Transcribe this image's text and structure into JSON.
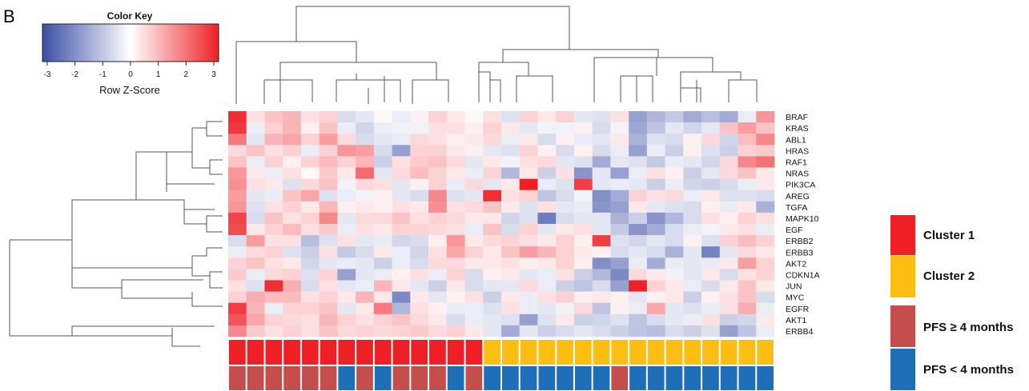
{
  "panel_label": "B",
  "color_key": {
    "title": "Color Key",
    "label": "Row Z-Score",
    "ticks": [
      -3,
      -2,
      -1,
      0,
      1,
      2,
      3
    ],
    "low_color": "#3b4ea6",
    "mid_color": "#ffffff",
    "high_color": "#ee2026"
  },
  "legend": [
    {
      "label": "Cluster 1",
      "color": "#ee2026"
    },
    {
      "label": "Cluster 2",
      "color": "#fdbe14"
    },
    {
      "label": "PFS ≥ 4 months",
      "color": "#c44e4c"
    },
    {
      "label": "PFS < 4 months",
      "color": "#1f6eb8"
    }
  ],
  "chart_data": {
    "type": "heatmap",
    "rows": [
      "BRAF",
      "KRAS",
      "ABL1",
      "HRAS",
      "RAF1",
      "NRAS",
      "PIK3CA",
      "AREG",
      "TGFA",
      "MAPK10",
      "EGF",
      "ERBB2",
      "ERBB3",
      "AKT2",
      "CDKN1A",
      "JUN",
      "MYC",
      "EGFR",
      "AKT1",
      "ERBB4"
    ],
    "n_columns": 30,
    "values": [
      [
        2.8,
        0.4,
        0.8,
        1.0,
        0.4,
        0.6,
        -0.6,
        -0.4,
        0.1,
        -0.3,
        0.2,
        0.6,
        0.3,
        0.1,
        0.4,
        -0.5,
        0.6,
        0.3,
        0.6,
        -0.4,
        -0.5,
        0.4,
        -1.6,
        -1.2,
        -0.9,
        -1.4,
        -1.1,
        -1.4,
        -0.3,
        1.4
      ],
      [
        2.7,
        -0.3,
        0.6,
        1.0,
        0.2,
        0.8,
        -0.3,
        -0.7,
        -0.3,
        -0.2,
        -0.2,
        0.4,
        0.4,
        0.2,
        0.6,
        0.3,
        -0.4,
        -0.2,
        -0.2,
        0.2,
        -0.6,
        -0.2,
        -1.5,
        -1.0,
        -0.4,
        -0.7,
        -0.4,
        0.8,
        1.3,
        0.8
      ],
      [
        1.8,
        -0.4,
        1.0,
        1.2,
        0.6,
        1.3,
        0.5,
        -0.6,
        -0.4,
        -0.3,
        0.5,
        0.4,
        0.2,
        0.3,
        0.5,
        -0.3,
        0.3,
        -0.6,
        0.2,
        -0.3,
        -0.4,
        0.3,
        -1.3,
        -0.5,
        -0.6,
        0.2,
        0.5,
        -0.7,
        0.9,
        1.6
      ],
      [
        0.5,
        0.8,
        0.4,
        0.6,
        -0.3,
        0.6,
        1.4,
        1.3,
        -0.6,
        -1.6,
        0.6,
        0.6,
        0.3,
        0.2,
        -0.4,
        -0.5,
        0.6,
        0.2,
        -0.6,
        0.2,
        -0.6,
        -0.3,
        -1.6,
        -0.3,
        -0.8,
        0.2,
        -0.5,
        -0.8,
        0.6,
        0.7
      ],
      [
        0.8,
        -0.3,
        0.6,
        0.2,
        0.6,
        0.9,
        0.6,
        1.0,
        -0.8,
        0.4,
        0.7,
        0.8,
        0.5,
        -0.4,
        0.3,
        -0.2,
        0.4,
        0.5,
        -0.4,
        -0.5,
        -1.4,
        -0.4,
        -0.5,
        -0.9,
        -0.3,
        -0.4,
        -0.7,
        0.5,
        1.6,
        1.9
      ],
      [
        1.4,
        0.3,
        -0.3,
        0.4,
        0.1,
        0.7,
        0.3,
        2.0,
        -0.4,
        0.5,
        0.9,
        0.6,
        0.3,
        -0.3,
        0.6,
        -1.2,
        0.3,
        -0.8,
        0.4,
        -1.8,
        -0.4,
        -1.6,
        -0.3,
        0.4,
        0.2,
        -0.8,
        -0.4,
        0.5,
        0.8,
        0.3
      ],
      [
        1.5,
        0.4,
        0.3,
        -0.5,
        0.5,
        0.8,
        -0.2,
        0.5,
        0.4,
        -0.4,
        0.2,
        0.6,
        -0.3,
        0.5,
        -0.4,
        0.3,
        3.0,
        -0.3,
        -0.5,
        2.6,
        -0.4,
        -0.3,
        -0.4,
        -0.8,
        -0.3,
        -0.7,
        -0.8,
        -0.6,
        -0.3,
        0.3
      ],
      [
        1.3,
        -0.4,
        -0.3,
        0.8,
        1.2,
        -0.5,
        -0.3,
        -0.2,
        0.2,
        -0.4,
        -0.6,
        1.6,
        -0.5,
        -0.4,
        2.8,
        0.4,
        0.6,
        -1.0,
        -0.6,
        -0.2,
        -1.9,
        -1.4,
        0.6,
        0.4,
        0.5,
        -0.3,
        0.3,
        -0.5,
        -0.5,
        -0.6
      ],
      [
        1.4,
        -0.5,
        0.4,
        0.6,
        0.3,
        1.0,
        0.2,
        0.3,
        0.2,
        0.4,
        0.3,
        1.5,
        0.4,
        0.5,
        0.8,
        0.3,
        -0.5,
        0.4,
        -0.4,
        -0.3,
        -1.8,
        -1.6,
        0.3,
        -0.4,
        -0.5,
        -0.6,
        0.2,
        -0.3,
        0.3,
        -1.3
      ],
      [
        2.5,
        -0.6,
        0.8,
        0.4,
        0.6,
        1.6,
        -0.4,
        0.5,
        0.5,
        0.8,
        0.4,
        0.6,
        0.5,
        0.3,
        0.3,
        -0.7,
        -0.5,
        -2.2,
        -0.6,
        -0.4,
        -0.4,
        -1.3,
        -0.8,
        -1.8,
        -1.2,
        -0.6,
        0.4,
        0.2,
        0.6,
        0.4
      ],
      [
        2.4,
        0.3,
        0.6,
        0.9,
        0.4,
        0.7,
        -0.3,
        0.4,
        0.3,
        0.6,
        0.6,
        0.5,
        0.4,
        -0.3,
        0.8,
        -0.6,
        0.6,
        -0.4,
        0.3,
        0.4,
        -0.4,
        -0.9,
        -1.8,
        -1.4,
        -0.6,
        -0.3,
        -0.2,
        0.3,
        0.4,
        -0.3
      ],
      [
        -0.6,
        1.3,
        0.4,
        0.4,
        -1.1,
        -0.5,
        0.4,
        -0.4,
        -0.3,
        -0.7,
        -0.6,
        0.2,
        1.4,
        0.3,
        0.5,
        0.6,
        0.4,
        0.3,
        0.6,
        0.2,
        2.6,
        -0.5,
        -0.7,
        -0.4,
        -0.6,
        0.2,
        -0.5,
        0.6,
        0.9,
        0.6
      ],
      [
        -0.3,
        0.5,
        0.6,
        -0.5,
        -0.8,
        0.4,
        -0.9,
        -0.6,
        0.3,
        -0.3,
        -0.7,
        0.4,
        1.2,
        0.6,
        0.3,
        0.8,
        1.3,
        1.0,
        0.6,
        0.3,
        0.2,
        -0.6,
        -0.4,
        -0.6,
        -1.3,
        -0.4,
        -2.1,
        -0.4,
        0.5,
        0.3
      ],
      [
        0.6,
        0.8,
        0.4,
        0.3,
        -0.7,
        -0.4,
        -0.3,
        -0.4,
        -0.8,
        -0.3,
        -0.6,
        0.5,
        0.5,
        0.3,
        0.3,
        0.4,
        0.2,
        0.3,
        0.6,
        0.2,
        -1.9,
        -1.6,
        -0.3,
        -1.4,
        -0.3,
        -0.4,
        -0.3,
        0.3,
        1.3,
        0.6
      ],
      [
        0.7,
        -0.3,
        0.5,
        0.6,
        -0.5,
        0.6,
        -1.6,
        -0.4,
        -0.3,
        0.2,
        0.4,
        -0.3,
        0.6,
        -0.6,
        0.2,
        0.3,
        -0.4,
        -0.3,
        0.4,
        -0.8,
        -1.2,
        -2.0,
        0.5,
        0.3,
        -0.2,
        -0.4,
        0.3,
        -0.6,
        0.4,
        0.6
      ],
      [
        0.4,
        -0.5,
        2.8,
        1.1,
        -0.6,
        0.4,
        -0.4,
        -0.3,
        1.0,
        0.3,
        -0.4,
        -0.8,
        0.3,
        -0.6,
        -0.4,
        -0.4,
        0.5,
        -0.3,
        -0.8,
        -1.0,
        -0.6,
        -1.6,
        3.0,
        0.6,
        0.3,
        -0.3,
        -0.6,
        0.3,
        0.8,
        0.3
      ],
      [
        0.6,
        1.1,
        0.9,
        0.9,
        0.4,
        0.6,
        0.3,
        1.0,
        0.3,
        -2.0,
        0.3,
        -0.4,
        0.2,
        0.4,
        -0.8,
        0.3,
        -0.3,
        0.4,
        0.6,
        0.2,
        0.3,
        0.2,
        -0.4,
        0.2,
        0.3,
        -0.8,
        0.2,
        0.4,
        0.8,
        -0.6
      ],
      [
        2.6,
        1.0,
        -0.3,
        0.6,
        0.6,
        0.8,
        -0.4,
        0.3,
        1.8,
        -1.2,
        0.4,
        0.2,
        -0.3,
        -0.3,
        -0.5,
        0.4,
        -0.3,
        -0.4,
        -0.2,
        0.5,
        -1.0,
        0.2,
        -0.3,
        1.2,
        -0.4,
        -0.5,
        -0.3,
        0.4,
        1.1,
        -0.3
      ],
      [
        2.3,
        1.2,
        0.6,
        0.5,
        0.4,
        1.0,
        0.6,
        0.4,
        0.6,
        0.8,
        0.5,
        0.3,
        -0.6,
        -0.3,
        -0.4,
        -0.5,
        -1.6,
        -0.5,
        0.3,
        -0.8,
        -0.7,
        -0.5,
        -1.0,
        -0.6,
        -0.4,
        -0.3,
        0.4,
        -0.8,
        -0.7,
        0.3
      ],
      [
        1.6,
        0.7,
        0.4,
        0.6,
        0.4,
        0.8,
        0.5,
        0.6,
        0.5,
        0.6,
        0.7,
        0.5,
        0.6,
        0.3,
        -0.4,
        -1.4,
        -0.4,
        -0.8,
        -0.6,
        -0.4,
        -0.6,
        -0.8,
        -1.0,
        -1.1,
        -0.6,
        -0.8,
        -0.5,
        -1.6,
        -1.0,
        -0.3
      ]
    ],
    "cluster_row": [
      1,
      1,
      1,
      1,
      1,
      1,
      1,
      1,
      1,
      1,
      1,
      1,
      1,
      1,
      2,
      2,
      2,
      2,
      2,
      2,
      2,
      2,
      2,
      2,
      2,
      2,
      2,
      2,
      2,
      2
    ],
    "pfs_row": [
      "ge4",
      "ge4",
      "ge4",
      "ge4",
      "ge4",
      "ge4",
      "lt4",
      "ge4",
      "lt4",
      "ge4",
      "ge4",
      "ge4",
      "lt4",
      "ge4",
      "lt4",
      "lt4",
      "lt4",
      "lt4",
      "lt4",
      "lt4",
      "lt4",
      "ge4",
      "lt4",
      "lt4",
      "lt4",
      "lt4",
      "lt4",
      "lt4",
      "lt4",
      "lt4"
    ],
    "zlim": [
      -3,
      3
    ]
  }
}
